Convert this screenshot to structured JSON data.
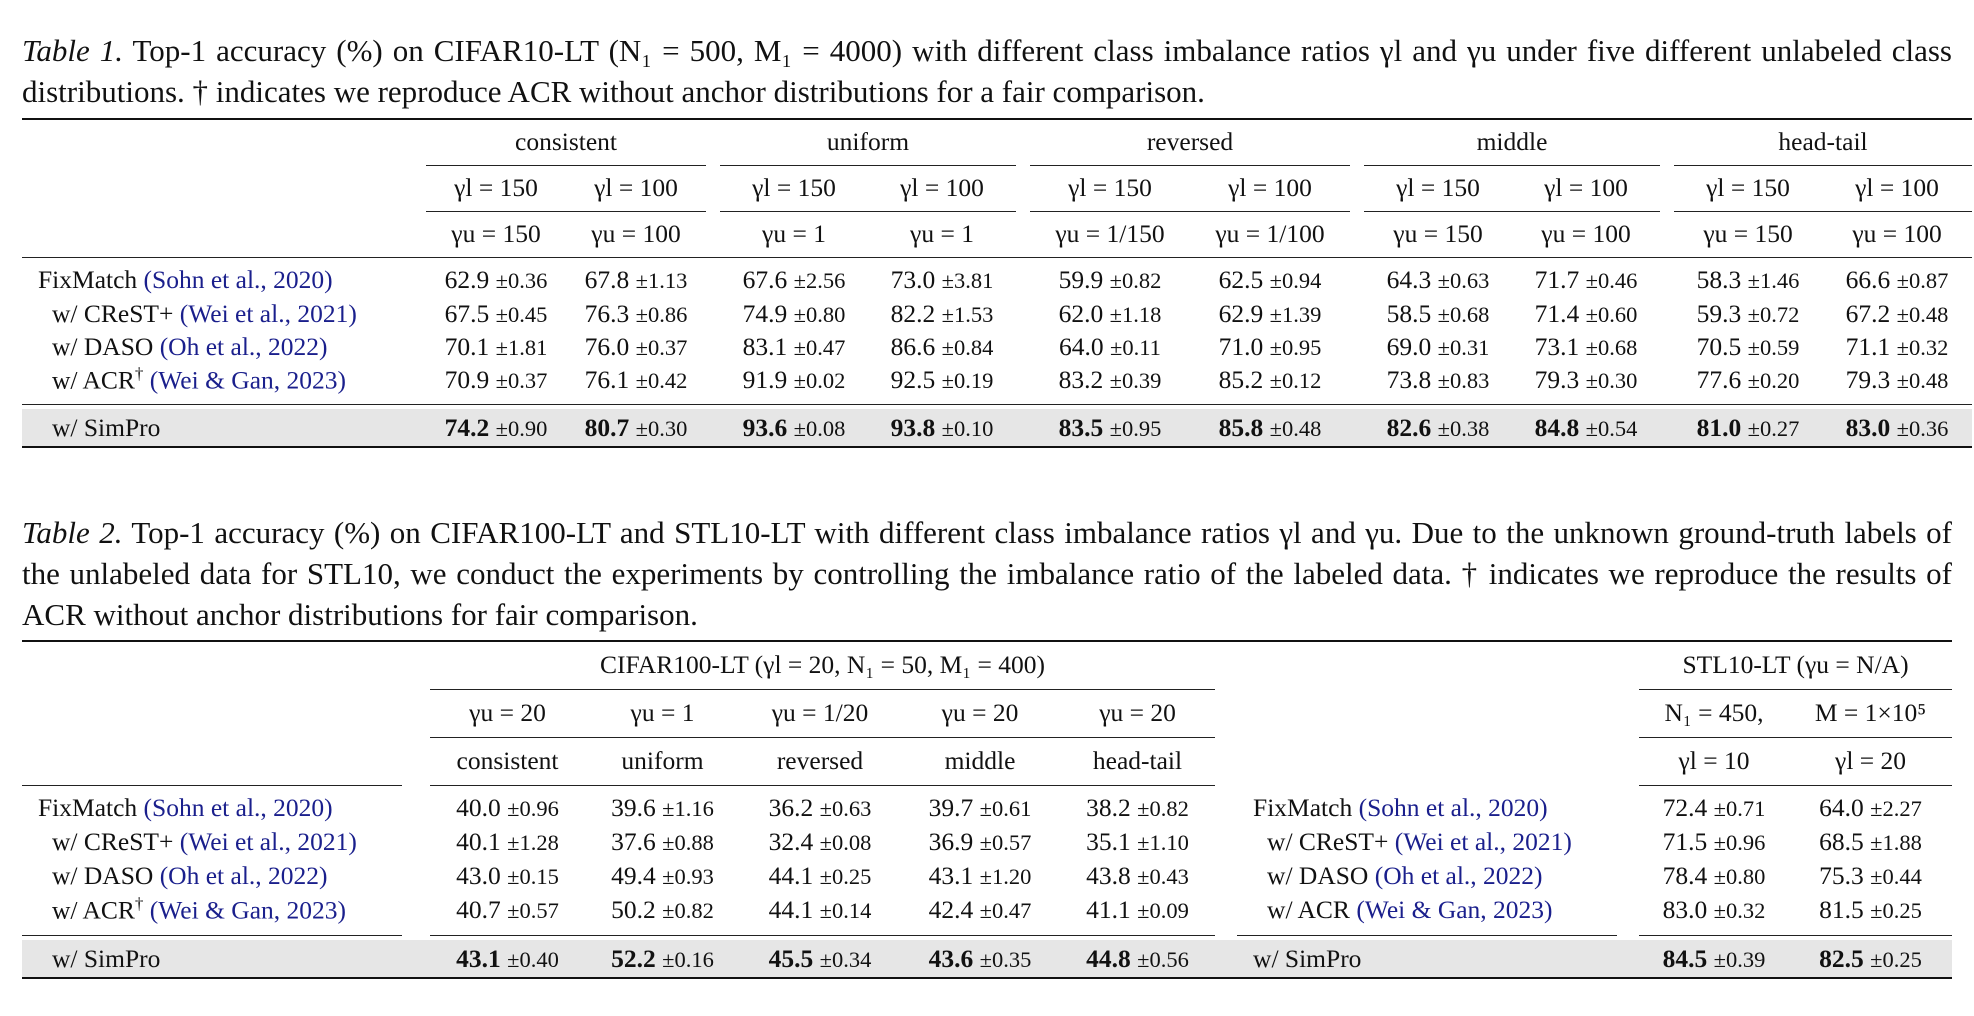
{
  "table1": {
    "caption_label": "Table 1.",
    "caption_text": "Top-1 accuracy (%) on CIFAR10-LT (N₁ = 500, M₁ = 4000) with different class imbalance ratios γl and γu under five different unlabeled class distributions. † indicates we reproduce ACR without anchor distributions for a fair comparison.",
    "groups": [
      "consistent",
      "uniform",
      "reversed",
      "middle",
      "head-tail"
    ],
    "gamma_l": [
      "γl = 150",
      "γl = 100",
      "γl = 150",
      "γl = 100",
      "γl = 150",
      "γl = 100",
      "γl = 150",
      "γl = 100",
      "γl = 150",
      "γl = 100"
    ],
    "gamma_u": [
      "γu = 150",
      "γu = 100",
      "γu = 1",
      "γu = 1",
      "γu = 1/150",
      "γu = 1/100",
      "γu = 150",
      "γu = 100",
      "γu = 150",
      "γu = 100"
    ],
    "rows": [
      {
        "method": "FixMatch",
        "cite": "(Sohn et al., 2020)",
        "dagger": "",
        "values": [
          "62.9",
          "67.8",
          "67.6",
          "73.0",
          "59.9",
          "62.5",
          "64.3",
          "71.7",
          "58.3",
          "66.6"
        ],
        "stds": [
          "±0.36",
          "±1.13",
          "±2.56",
          "±3.81",
          "±0.82",
          "±0.94",
          "±0.63",
          "±0.46",
          "±1.46",
          "±0.87"
        ]
      },
      {
        "method": "w/ CReST+",
        "cite": "(Wei et al., 2021)",
        "dagger": "",
        "values": [
          "67.5",
          "76.3",
          "74.9",
          "82.2",
          "62.0",
          "62.9",
          "58.5",
          "71.4",
          "59.3",
          "67.2"
        ],
        "stds": [
          "±0.45",
          "±0.86",
          "±0.80",
          "±1.53",
          "±1.18",
          "±1.39",
          "±0.68",
          "±0.60",
          "±0.72",
          "±0.48"
        ]
      },
      {
        "method": "w/ DASO",
        "cite": "(Oh et al., 2022)",
        "dagger": "",
        "values": [
          "70.1",
          "76.0",
          "83.1",
          "86.6",
          "64.0",
          "71.0",
          "69.0",
          "73.1",
          "70.5",
          "71.1"
        ],
        "stds": [
          "±1.81",
          "±0.37",
          "±0.47",
          "±0.84",
          "±0.11",
          "±0.95",
          "±0.31",
          "±0.68",
          "±0.59",
          "±0.32"
        ]
      },
      {
        "method": "w/ ACR",
        "cite": "(Wei & Gan, 2023)",
        "dagger": "†",
        "values": [
          "70.9",
          "76.1",
          "91.9",
          "92.5",
          "83.2",
          "85.2",
          "73.8",
          "79.3",
          "77.6",
          "79.3"
        ],
        "stds": [
          "±0.37",
          "±0.42",
          "±0.02",
          "±0.19",
          "±0.39",
          "±0.12",
          "±0.83",
          "±0.30",
          "±0.20",
          "±0.48"
        ]
      }
    ],
    "best": {
      "method": "w/ SimPro",
      "values": [
        "74.2",
        "80.7",
        "93.6",
        "93.8",
        "83.5",
        "85.8",
        "82.6",
        "84.8",
        "81.0",
        "83.0"
      ],
      "stds": [
        "±0.90",
        "±0.30",
        "±0.08",
        "±0.10",
        "±0.95",
        "±0.48",
        "±0.38",
        "±0.54",
        "±0.27",
        "±0.36"
      ]
    }
  },
  "table2": {
    "caption_label": "Table 2.",
    "caption_text": "Top-1 accuracy (%) on CIFAR100-LT and STL10-LT with different class imbalance ratios γl and γu. Due to the unknown ground-truth labels of the unlabeled data for STL10, we conduct the experiments by controlling the imbalance ratio of the labeled data. † indicates we reproduce the results of ACR without anchor distributions for fair comparison.",
    "cifar_header": "CIFAR100-LT (γl = 20, N₁ = 50, M₁ = 400)",
    "cifar_gamma_u": [
      "γu = 20",
      "γu = 1",
      "γu = 1/20",
      "γu = 20",
      "γu = 20"
    ],
    "cifar_dist": [
      "consistent",
      "uniform",
      "reversed",
      "middle",
      "head-tail"
    ],
    "stl_header": "STL10-LT (γu = N/A)",
    "stl_n": "N₁ = 450,",
    "stl_m": "M = 1×10⁵",
    "stl_gamma_l": [
      "γl = 10",
      "γl = 20"
    ],
    "rows": [
      {
        "method": "FixMatch",
        "cite": "(Sohn et al., 2020)",
        "dagger": "",
        "values": [
          "40.0",
          "39.6",
          "36.2",
          "39.7",
          "38.2"
        ],
        "stds": [
          "±0.96",
          "±1.16",
          "±0.63",
          "±0.61",
          "±0.82"
        ],
        "stl_method": "FixMatch",
        "stl_cite": "(Sohn et al., 2020)",
        "stl_values": [
          "72.4",
          "64.0"
        ],
        "stl_stds": [
          "±0.71",
          "±2.27"
        ]
      },
      {
        "method": "w/ CReST+",
        "cite": "(Wei et al., 2021)",
        "dagger": "",
        "values": [
          "40.1",
          "37.6",
          "32.4",
          "36.9",
          "35.1"
        ],
        "stds": [
          "±1.28",
          "±0.88",
          "±0.08",
          "±0.57",
          "±1.10"
        ],
        "stl_method": "w/ CReST+",
        "stl_cite": "(Wei et al., 2021)",
        "stl_values": [
          "71.5",
          "68.5"
        ],
        "stl_stds": [
          "±0.96",
          "±1.88"
        ]
      },
      {
        "method": "w/ DASO",
        "cite": "(Oh et al., 2022)",
        "dagger": "",
        "values": [
          "43.0",
          "49.4",
          "44.1",
          "43.1",
          "43.8"
        ],
        "stds": [
          "±0.15",
          "±0.93",
          "±0.25",
          "±1.20",
          "±0.43"
        ],
        "stl_method": "w/ DASO",
        "stl_cite": "(Oh et al., 2022)",
        "stl_values": [
          "78.4",
          "75.3"
        ],
        "stl_stds": [
          "±0.80",
          "±0.44"
        ]
      },
      {
        "method": "w/ ACR",
        "cite": "(Wei & Gan, 2023)",
        "dagger": "†",
        "values": [
          "40.7",
          "50.2",
          "44.1",
          "42.4",
          "41.1"
        ],
        "stds": [
          "±0.57",
          "±0.82",
          "±0.14",
          "±0.47",
          "±0.09"
        ],
        "stl_method": "w/ ACR",
        "stl_cite": "(Wei & Gan, 2023)",
        "stl_values": [
          "83.0",
          "81.5"
        ],
        "stl_stds": [
          "±0.32",
          "±0.25"
        ]
      }
    ],
    "best": {
      "method": "w/ SimPro",
      "values": [
        "43.1",
        "52.2",
        "45.5",
        "43.6",
        "44.8"
      ],
      "stds": [
        "±0.40",
        "±0.16",
        "±0.34",
        "±0.35",
        "±0.56"
      ],
      "stl_method": "w/ SimPro",
      "stl_values": [
        "84.5",
        "82.5"
      ],
      "stl_stds": [
        "±0.39",
        "±0.25"
      ]
    }
  }
}
